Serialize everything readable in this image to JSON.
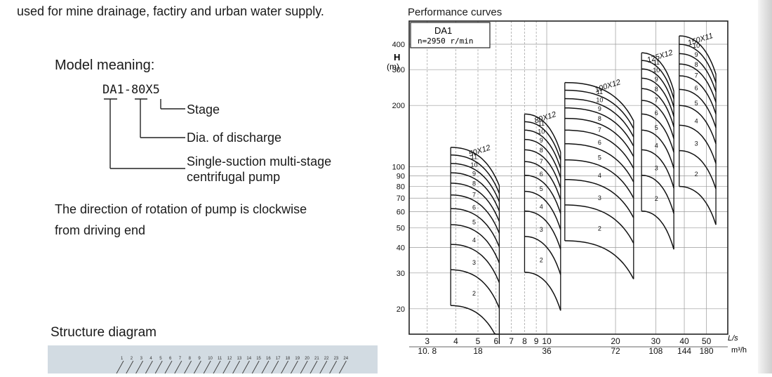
{
  "intro_line": "used for mine drainage, factiry and urban water supply.",
  "model": {
    "heading": "Model meaning:",
    "code": "DA1-80X5",
    "labels": [
      "Stage",
      "Dia. of discharge",
      "Single-suction multi-stage",
      "centrifugal pump"
    ]
  },
  "rotation": {
    "line1": "The direction of rotation of pump is clockwise",
    "line2": "from driving end"
  },
  "structure": {
    "heading": "Structure diagram",
    "part_numbers": [
      "1",
      "2",
      "3",
      "4",
      "5",
      "6",
      "7",
      "8",
      "9",
      "10",
      "11",
      "12",
      "13",
      "14",
      "15",
      "16",
      "17",
      "18",
      "19",
      "20",
      "21",
      "22",
      "23",
      "24"
    ]
  },
  "chart_data": {
    "type": "line",
    "title": "Performance curves",
    "info_box": [
      "DA1",
      "n=2950 r/min"
    ],
    "ylabel": "H",
    "yunit": "(m)",
    "yscale": "log",
    "ylim": [
      15,
      520
    ],
    "yticks": [
      20,
      30,
      40,
      50,
      60,
      70,
      80,
      90,
      100,
      200,
      300,
      400
    ],
    "xscale": "log",
    "xlim": [
      2.5,
      62
    ],
    "xticks_ls": [
      3,
      4,
      5,
      6,
      7,
      8,
      9,
      10,
      20,
      30,
      40,
      50
    ],
    "xticks_m3h": [
      {
        "at": 3,
        "label": "10. 8"
      },
      {
        "at": 5,
        "label": "18"
      },
      {
        "at": 10,
        "label": "36"
      },
      {
        "at": 20,
        "label": "72"
      },
      {
        "at": 30,
        "label": "108"
      },
      {
        "at": 40,
        "label": "144"
      },
      {
        "at": 50,
        "label": "180"
      }
    ],
    "xunit_ls": "L/s",
    "xunit_m3h": "m³/h",
    "grid": true,
    "series": [
      {
        "name": "50X12",
        "q": [
          3.8,
          6.2
        ],
        "h_per_stage": 9.6,
        "stages": [
          2,
          3,
          4,
          5,
          6,
          7,
          8,
          9,
          10,
          11
        ],
        "labeled": [
          "2",
          "3",
          "4",
          "5",
          "6",
          "7",
          "8",
          "9",
          "10",
          "11"
        ]
      },
      {
        "name": "80X12",
        "q": [
          8.0,
          11.5
        ],
        "h_per_stage": 14.0,
        "stages": [
          2,
          3,
          4,
          5,
          6,
          7,
          8,
          9,
          10,
          11
        ],
        "labeled": [
          "2",
          "3",
          "4",
          "5",
          "6",
          "7",
          "8",
          "9",
          "10",
          "11"
        ]
      },
      {
        "name": "100X12",
        "q": [
          12.0,
          24.0
        ],
        "h_per_stage": 20.0,
        "stages": [
          2,
          3,
          4,
          5,
          6,
          7,
          8,
          9,
          10,
          11
        ],
        "labeled": [
          "2",
          "3",
          "4",
          "5",
          "6",
          "7",
          "8",
          "9",
          "10",
          "11"
        ]
      },
      {
        "name": "125X12",
        "q": [
          26.0,
          36.0
        ],
        "h_per_stage": 28.0,
        "stages": [
          2,
          3,
          4,
          5,
          6,
          7,
          8,
          9,
          10,
          11
        ],
        "labeled": [
          "2",
          "3",
          "4",
          "5",
          "6",
          "7",
          "8",
          "9",
          "10",
          "11"
        ]
      },
      {
        "name": "150X11",
        "q": [
          38.0,
          55.0
        ],
        "h_per_stage": 37.0,
        "stages": [
          2,
          3,
          4,
          5,
          6,
          7,
          8,
          9,
          10
        ],
        "labeled": [
          "2",
          "3",
          "4",
          "5",
          "6",
          "7",
          "8",
          "9",
          "10"
        ]
      }
    ]
  }
}
